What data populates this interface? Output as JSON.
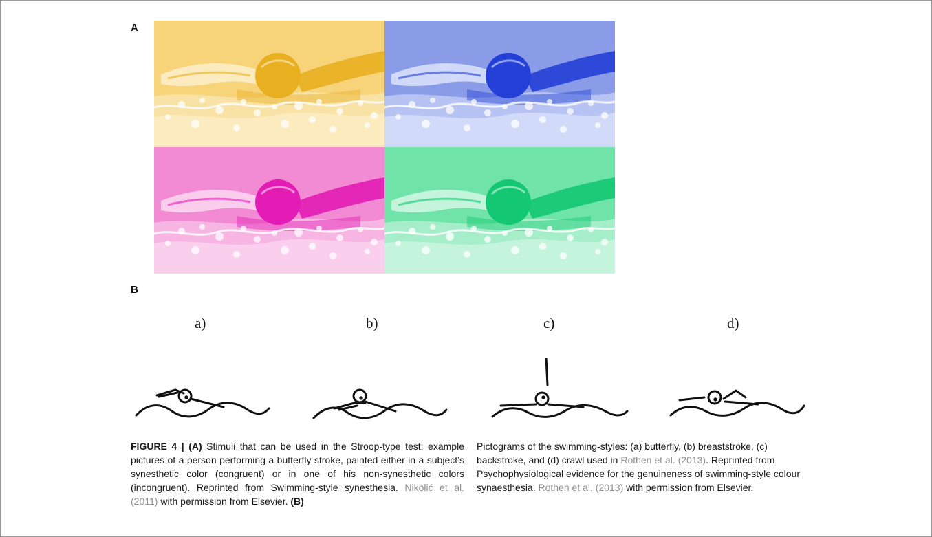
{
  "panels": {
    "a_label": "A",
    "b_label": "B"
  },
  "tiles": [
    {
      "name": "yellow",
      "bg": "#f7d37a",
      "dark": "#e8b021",
      "light": "#fcefcb"
    },
    {
      "name": "blue",
      "bg": "#8a9ce8",
      "dark": "#2440d6",
      "light": "#dde4fb"
    },
    {
      "name": "pink",
      "bg": "#f28bd4",
      "dark": "#e21cb4",
      "light": "#fbd8f1"
    },
    {
      "name": "green",
      "bg": "#6fe3a8",
      "dark": "#14c772",
      "light": "#d3f7e4"
    }
  ],
  "styles": [
    {
      "label": "a)",
      "icon": "butterfly-pictogram-icon"
    },
    {
      "label": "b)",
      "icon": "breaststroke-pictogram-icon"
    },
    {
      "label": "c)",
      "icon": "backstroke-pictogram-icon"
    },
    {
      "label": "d)",
      "icon": "crawl-pictogram-icon"
    }
  ],
  "caption": {
    "figure_label": "FIGURE 4 | (A)",
    "text1": " Stimuli that can be used in the Stroop-type test: example pictures of a person performing a butterfly stroke, painted either in a subject’s synesthetic color (congruent) or in one of his non-synesthetic colors (incongruent). Reprinted from Swimming-style synesthesia. ",
    "ref1": "Nikolić et al. (2011)",
    "text2": " with permission from Elsevier. ",
    "b_label": "(B)",
    "text3": "Pictograms of the swimming-styles: (a) butterfly, (b) breaststroke, (c) backstroke, and (d) crawl used in ",
    "ref2": "Rothen et al. (2013)",
    "text4": ". Reprinted from Psychophysiological evidence for the genuineness of swimming-style colour synaesthesia. ",
    "ref3": "Rothen et al. (2013)",
    "text5": " with permission from Elsevier."
  }
}
